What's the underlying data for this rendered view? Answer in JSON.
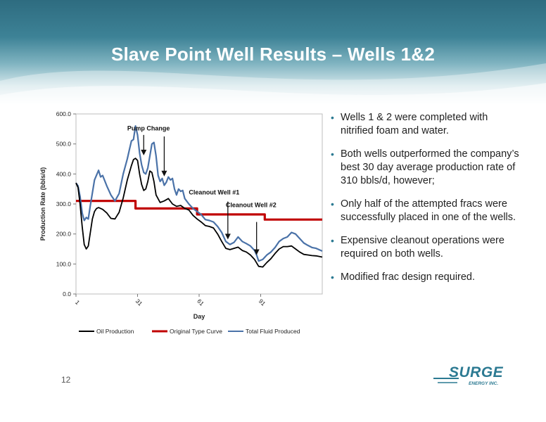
{
  "slide": {
    "title": "Slave Point Well Results – Wells 1&2",
    "page_number": "12"
  },
  "bullets": [
    "Wells 1 & 2 were completed with nitrified foam and water.",
    "Both wells outperformed the company’s best 30 day average production rate of 310 bbls/d, however;",
    "Only half of the attempted fracs were successfully placed in one of the wells.",
    "Expensive cleanout operations were required on both wells.",
    "Modified frac design required."
  ],
  "logo": {
    "name": "SURGE",
    "sub": "ENERGY INC."
  },
  "colors": {
    "oil": "#000000",
    "type_curve": "#c00000",
    "fluid": "#4a72a8",
    "accent": "#2c7a92"
  },
  "chart_data": {
    "type": "line",
    "xlabel": "Day",
    "ylabel": "Production Rate (bbls/d)",
    "ylim": [
      0,
      600
    ],
    "yticks": [
      "0.0",
      "100.0",
      "200.0",
      "300.0",
      "400.0",
      "500.0",
      "600.0"
    ],
    "xlim": [
      1,
      121
    ],
    "xticks": [
      "1",
      "31",
      "61",
      "91"
    ],
    "legend_position": "bottom",
    "series": [
      {
        "name": "Oil Production",
        "color": "#000000",
        "points": [
          [
            1,
            370
          ],
          [
            2,
            355
          ],
          [
            3,
            300
          ],
          [
            4,
            225
          ],
          [
            5,
            165
          ],
          [
            6,
            150
          ],
          [
            7,
            160
          ],
          [
            8,
            205
          ],
          [
            9,
            250
          ],
          [
            10,
            275
          ],
          [
            11,
            285
          ],
          [
            12,
            288
          ],
          [
            14,
            282
          ],
          [
            16,
            270
          ],
          [
            18,
            252
          ],
          [
            20,
            250
          ],
          [
            22,
            272
          ],
          [
            24,
            320
          ],
          [
            26,
            380
          ],
          [
            28,
            428
          ],
          [
            29,
            448
          ],
          [
            30,
            452
          ],
          [
            31,
            445
          ],
          [
            32,
            400
          ],
          [
            33,
            365
          ],
          [
            34,
            345
          ],
          [
            35,
            350
          ],
          [
            36,
            375
          ],
          [
            37,
            410
          ],
          [
            38,
            405
          ],
          [
            39,
            375
          ],
          [
            40,
            330
          ],
          [
            42,
            305
          ],
          [
            44,
            310
          ],
          [
            46,
            318
          ],
          [
            48,
            300
          ],
          [
            50,
            292
          ],
          [
            52,
            295
          ],
          [
            54,
            285
          ],
          [
            56,
            280
          ],
          [
            58,
            262
          ],
          [
            60,
            250
          ],
          [
            62,
            240
          ],
          [
            64,
            228
          ],
          [
            66,
            225
          ],
          [
            68,
            220
          ],
          [
            70,
            200
          ],
          [
            72,
            175
          ],
          [
            74,
            152
          ],
          [
            76,
            148
          ],
          [
            78,
            152
          ],
          [
            80,
            156
          ],
          [
            82,
            145
          ],
          [
            84,
            140
          ],
          [
            86,
            130
          ],
          [
            88,
            115
          ],
          [
            90,
            92
          ],
          [
            92,
            90
          ],
          [
            94,
            105
          ],
          [
            96,
            118
          ],
          [
            98,
            135
          ],
          [
            100,
            150
          ],
          [
            102,
            158
          ],
          [
            104,
            158
          ],
          [
            106,
            160
          ],
          [
            108,
            150
          ],
          [
            110,
            140
          ],
          [
            112,
            132
          ],
          [
            114,
            130
          ],
          [
            116,
            128
          ],
          [
            118,
            127
          ],
          [
            121,
            123
          ]
        ]
      },
      {
        "name": "Original Type Curve",
        "color": "#c00000",
        "points": [
          [
            1,
            310
          ],
          [
            30,
            310
          ],
          [
            30,
            285
          ],
          [
            60,
            285
          ],
          [
            60,
            265
          ],
          [
            90,
            265
          ],
          [
            93,
            265
          ],
          [
            93,
            248
          ],
          [
            121,
            248
          ]
        ]
      },
      {
        "name": "Total Fluid Produced",
        "color": "#4a72a8",
        "points": [
          [
            1,
            370
          ],
          [
            2,
            360
          ],
          [
            3,
            325
          ],
          [
            4,
            270
          ],
          [
            5,
            245
          ],
          [
            6,
            255
          ],
          [
            7,
            250
          ],
          [
            8,
            295
          ],
          [
            10,
            380
          ],
          [
            12,
            412
          ],
          [
            13,
            390
          ],
          [
            14,
            395
          ],
          [
            16,
            360
          ],
          [
            18,
            330
          ],
          [
            20,
            310
          ],
          [
            22,
            335
          ],
          [
            24,
            400
          ],
          [
            26,
            450
          ],
          [
            27,
            480
          ],
          [
            28,
            510
          ],
          [
            29,
            515
          ],
          [
            30,
            560
          ],
          [
            31,
            530
          ],
          [
            32,
            470
          ],
          [
            33,
            430
          ],
          [
            34,
            405
          ],
          [
            35,
            400
          ],
          [
            36,
            420
          ],
          [
            37,
            460
          ],
          [
            38,
            500
          ],
          [
            39,
            505
          ],
          [
            40,
            460
          ],
          [
            41,
            395
          ],
          [
            42,
            375
          ],
          [
            43,
            385
          ],
          [
            44,
            362
          ],
          [
            45,
            372
          ],
          [
            46,
            390
          ],
          [
            47,
            380
          ],
          [
            48,
            385
          ],
          [
            49,
            350
          ],
          [
            50,
            330
          ],
          [
            51,
            350
          ],
          [
            52,
            342
          ],
          [
            53,
            345
          ],
          [
            54,
            318
          ],
          [
            56,
            300
          ],
          [
            58,
            285
          ],
          [
            60,
            275
          ],
          [
            62,
            265
          ],
          [
            64,
            248
          ],
          [
            66,
            245
          ],
          [
            68,
            240
          ],
          [
            70,
            225
          ],
          [
            72,
            205
          ],
          [
            74,
            175
          ],
          [
            76,
            165
          ],
          [
            78,
            172
          ],
          [
            80,
            190
          ],
          [
            82,
            175
          ],
          [
            84,
            168
          ],
          [
            86,
            160
          ],
          [
            88,
            145
          ],
          [
            89,
            130
          ],
          [
            90,
            110
          ],
          [
            92,
            115
          ],
          [
            94,
            130
          ],
          [
            96,
            140
          ],
          [
            98,
            155
          ],
          [
            100,
            175
          ],
          [
            102,
            185
          ],
          [
            104,
            190
          ],
          [
            106,
            205
          ],
          [
            108,
            200
          ],
          [
            110,
            185
          ],
          [
            112,
            170
          ],
          [
            114,
            162
          ],
          [
            116,
            155
          ],
          [
            118,
            152
          ],
          [
            121,
            143
          ]
        ]
      }
    ],
    "annotations": [
      {
        "text": "Pump Change",
        "label_at": [
          26,
          545
        ],
        "arrows": [
          [
            [
              34,
              530
            ],
            [
              34,
              462
            ]
          ],
          [
            [
              44,
              525
            ],
            [
              44,
              392
            ]
          ]
        ]
      },
      {
        "text": "Cleanout Well #1",
        "label_at": [
          56,
          332
        ],
        "arrows": [
          [
            [
              75,
              308
            ],
            [
              75,
              182
            ]
          ]
        ]
      },
      {
        "text": "Cleanout Well #2",
        "label_at": [
          74,
          290
        ],
        "arrows": [
          [
            [
              89,
              240
            ],
            [
              89,
              130
            ]
          ]
        ]
      }
    ]
  }
}
